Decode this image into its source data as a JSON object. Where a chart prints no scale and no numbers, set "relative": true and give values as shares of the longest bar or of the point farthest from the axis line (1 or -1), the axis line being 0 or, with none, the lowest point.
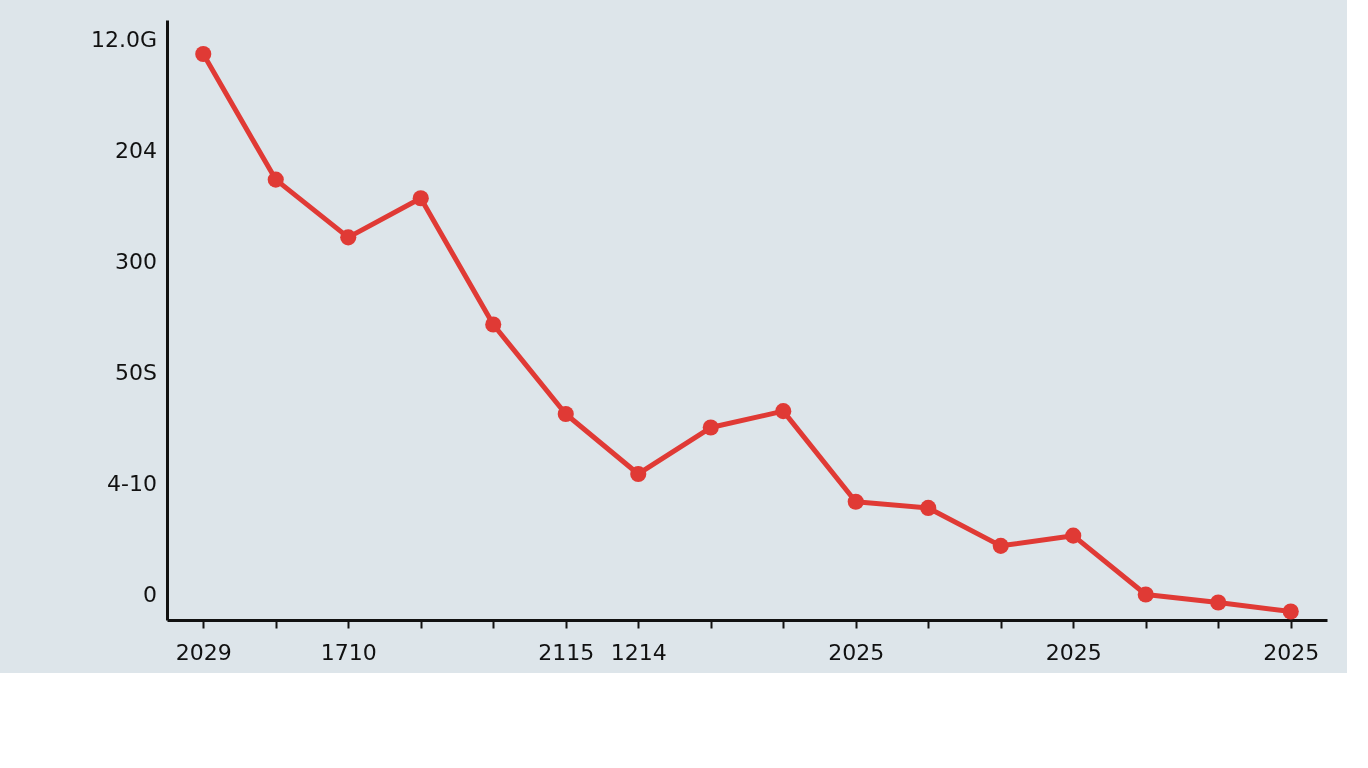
{
  "chart_data": {
    "type": "line",
    "relative": true,
    "marker": "circle",
    "line_style": "solid",
    "legend": false,
    "categories": [
      "2029",
      null,
      "1710",
      null,
      null,
      "2115",
      "1214",
      null,
      null,
      "2025",
      null,
      null,
      "2025",
      null,
      null,
      "2025"
    ],
    "series": [
      {
        "color": "#e03a35",
        "values": [
          1.0,
          0.778,
          0.676,
          0.745,
          0.522,
          0.364,
          0.258,
          0.34,
          0.369,
          0.209,
          0.198,
          0.131,
          0.149,
          0.045,
          0.031,
          0.015
        ]
      }
    ],
    "annotations": [
      "12.0G",
      "204",
      "300",
      "50S",
      "4-10",
      "0"
    ]
  }
}
